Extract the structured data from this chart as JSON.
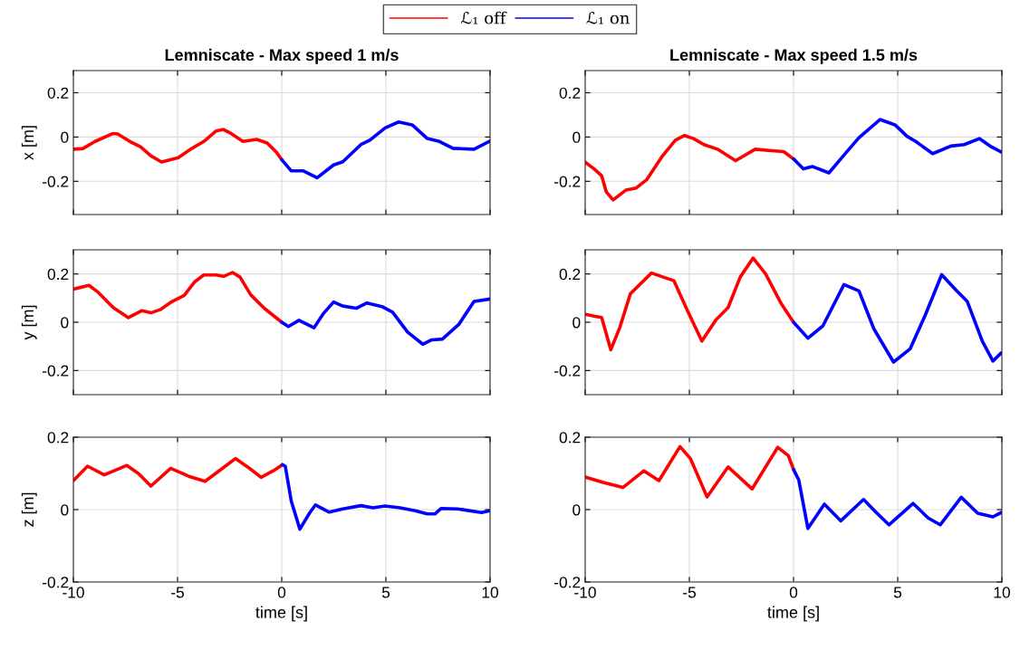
{
  "chart_data": [
    {
      "type": "line",
      "title": "Lemniscate - Max speed 1 m/s",
      "ylabel": "x [m]",
      "xlim": [
        -10,
        10
      ],
      "xticks": [
        -10,
        -5,
        0,
        5,
        10
      ],
      "ylim": [
        -0.35,
        0.3
      ],
      "yticks": [
        -0.2,
        0,
        0.2
      ],
      "grid": true,
      "tick_labels": "y",
      "legend": "top",
      "series": [
        {
          "name": "ℒ₁ off",
          "color": "#ff0000",
          "x": [
            -10,
            -9.54,
            -8.96,
            -8.09,
            -7.87,
            -7.29,
            -6.78,
            -6.28,
            -5.77,
            -4.97,
            -4.32,
            -3.74,
            -3.16,
            -2.8,
            -2.43,
            -1.86,
            -1.2,
            -0.7,
            -0.26,
            0
          ],
          "values": [
            -0.055,
            -0.052,
            -0.02,
            0.016,
            0.014,
            -0.02,
            -0.044,
            -0.085,
            -0.113,
            -0.093,
            -0.052,
            -0.02,
            0.027,
            0.034,
            0.016,
            -0.02,
            -0.011,
            -0.027,
            -0.068,
            -0.102
          ]
        },
        {
          "name": "ℒ₁ on",
          "color": "#0000ff",
          "x": [
            0,
            0.46,
            1.04,
            1.7,
            2.49,
            2.93,
            3.8,
            4.23,
            4.96,
            5.61,
            6.26,
            6.99,
            7.57,
            8.22,
            9.23,
            10
          ],
          "values": [
            -0.102,
            -0.153,
            -0.153,
            -0.184,
            -0.126,
            -0.112,
            -0.034,
            -0.014,
            0.041,
            0.068,
            0.055,
            -0.007,
            -0.02,
            -0.051,
            -0.055,
            -0.018
          ]
        }
      ]
    },
    {
      "type": "line",
      "title": "Lemniscate - Max speed 1.5 m/s",
      "xlim": [
        -10,
        10
      ],
      "xticks": [
        -10,
        -5,
        0,
        5,
        10
      ],
      "ylim": [
        -0.35,
        0.3
      ],
      "yticks": [
        -0.2,
        0,
        0.2
      ],
      "grid": true,
      "tick_labels": "y",
      "series": [
        {
          "color": "#ff0000",
          "x": [
            -10,
            -9.57,
            -9.21,
            -8.99,
            -8.66,
            -8.05,
            -7.55,
            -7.04,
            -6.32,
            -5.67,
            -5.23,
            -4.8,
            -4.3,
            -3.65,
            -2.78,
            -1.84,
            -1.05,
            -0.47,
            0
          ],
          "values": [
            -0.114,
            -0.144,
            -0.175,
            -0.247,
            -0.284,
            -0.24,
            -0.23,
            -0.192,
            -0.089,
            -0.014,
            0.007,
            -0.007,
            -0.034,
            -0.055,
            -0.107,
            -0.055,
            -0.062,
            -0.066,
            -0.099
          ]
        },
        {
          "color": "#0000ff",
          "x": [
            0,
            0.47,
            0.9,
            1.7,
            2.42,
            3.14,
            4.15,
            4.87,
            5.45,
            5.88,
            6.68,
            7.55,
            8.19,
            8.92,
            9.49,
            9.97
          ],
          "values": [
            -0.099,
            -0.144,
            -0.133,
            -0.162,
            -0.082,
            -0.003,
            0.079,
            0.055,
            0.003,
            -0.021,
            -0.075,
            -0.041,
            -0.034,
            -0.007,
            -0.044,
            -0.068
          ]
        }
      ]
    },
    {
      "type": "line",
      "ylabel": "y [m]",
      "xlim": [
        -10,
        10
      ],
      "xticks": [
        -10,
        -5,
        0,
        5,
        10
      ],
      "ylim": [
        -0.3,
        0.3
      ],
      "yticks": [
        -0.2,
        0,
        0.2
      ],
      "grid": true,
      "tick_labels": "y",
      "series": [
        {
          "color": "#ff0000",
          "x": [
            -10,
            -9.25,
            -8.81,
            -8.09,
            -7.36,
            -6.71,
            -6.28,
            -5.84,
            -5.26,
            -4.68,
            -4.17,
            -3.74,
            -3.16,
            -2.8,
            -2.36,
            -2.0,
            -1.49,
            -0.84,
            0
          ],
          "values": [
            0.137,
            0.153,
            0.124,
            0.061,
            0.019,
            0.048,
            0.039,
            0.052,
            0.086,
            0.111,
            0.168,
            0.196,
            0.196,
            0.19,
            0.206,
            0.187,
            0.114,
            0.058,
            0
          ]
        },
        {
          "color": "#0000ff",
          "x": [
            0,
            0.32,
            0.83,
            1.55,
            1.99,
            2.49,
            2.93,
            3.58,
            4.09,
            4.81,
            5.32,
            6.04,
            6.77,
            7.2,
            7.71,
            8.5,
            9.23,
            10
          ],
          "values": [
            0,
            -0.018,
            0.008,
            -0.023,
            0.035,
            0.084,
            0.067,
            0.058,
            0.08,
            0.065,
            0.042,
            -0.041,
            -0.091,
            -0.073,
            -0.07,
            -0.009,
            0.086,
            0.096
          ]
        }
      ]
    },
    {
      "type": "line",
      "xlim": [
        -10,
        10
      ],
      "xticks": [
        -10,
        -5,
        0,
        5,
        10
      ],
      "ylim": [
        -0.3,
        0.3
      ],
      "yticks": [
        -0.2,
        0,
        0.2
      ],
      "grid": true,
      "tick_labels": "y",
      "series": [
        {
          "color": "#ff0000",
          "x": [
            -10,
            -9.57,
            -9.21,
            -8.77,
            -8.34,
            -7.83,
            -6.82,
            -6.25,
            -5.74,
            -5.09,
            -4.4,
            -3.72,
            -3.14,
            -2.56,
            -1.94,
            -1.34,
            -0.61,
            0
          ],
          "values": [
            0.033,
            0.025,
            0.02,
            -0.114,
            -0.022,
            0.118,
            0.204,
            0.187,
            0.172,
            0.048,
            -0.078,
            0.01,
            0.061,
            0.187,
            0.266,
            0.2,
            0.08,
            0
          ]
        },
        {
          "color": "#0000ff",
          "x": [
            0,
            0.69,
            1.41,
            2.42,
            3.14,
            3.86,
            4.8,
            5.6,
            6.32,
            7.11,
            7.83,
            8.34,
            9.06,
            9.57,
            9.97
          ],
          "values": [
            0,
            -0.066,
            -0.015,
            0.156,
            0.13,
            -0.028,
            -0.165,
            -0.11,
            0.029,
            0.197,
            0.13,
            0.086,
            -0.078,
            -0.161,
            -0.127
          ]
        }
      ]
    },
    {
      "type": "line",
      "ylabel": "z [m]",
      "xlabel": "time [s]",
      "xlim": [
        -10,
        10
      ],
      "xticks": [
        -10,
        -5,
        0,
        5,
        10
      ],
      "ylim": [
        -0.2,
        0.2
      ],
      "yticks": [
        -0.2,
        0,
        0.2
      ],
      "grid": true,
      "series": [
        {
          "color": "#ff0000",
          "x": [
            -10,
            -9.32,
            -8.52,
            -7.43,
            -6.86,
            -6.28,
            -5.33,
            -4.46,
            -3.68,
            -3.01,
            -2.22,
            -1.57,
            -0.99,
            -0.41,
            0.03
          ],
          "values": [
            0.08,
            0.12,
            0.096,
            0.122,
            0.099,
            0.065,
            0.114,
            0.092,
            0.078,
            0.107,
            0.141,
            0.115,
            0.089,
            0.107,
            0.124
          ]
        },
        {
          "color": "#0000ff",
          "x": [
            0.03,
            0.17,
            0.46,
            0.87,
            1.33,
            1.62,
            2.28,
            2.93,
            3.8,
            4.38,
            4.96,
            5.68,
            6.41,
            6.99,
            7.35,
            7.64,
            8.43,
            9.59,
            10
          ],
          "values": [
            0.124,
            0.12,
            0.023,
            -0.054,
            -0.01,
            0.013,
            -0.007,
            0.002,
            0.011,
            0.005,
            0.01,
            0.005,
            -0.003,
            -0.012,
            -0.012,
            0.003,
            0.002,
            -0.008,
            -0.003
          ]
        }
      ]
    },
    {
      "type": "line",
      "xlabel": "time [s]",
      "xlim": [
        -10,
        10
      ],
      "xticks": [
        -10,
        -5,
        0,
        5,
        10
      ],
      "ylim": [
        -0.2,
        0.2
      ],
      "yticks": [
        -0.2,
        0,
        0.2
      ],
      "grid": true,
      "series": [
        {
          "color": "#ff0000",
          "x": [
            -10,
            -9.13,
            -8.19,
            -7.18,
            -6.46,
            -5.45,
            -4.95,
            -4.15,
            -3.14,
            -1.99,
            -0.76,
            -0.25,
            0
          ],
          "values": [
            0.09,
            0.075,
            0.061,
            0.107,
            0.08,
            0.174,
            0.141,
            0.035,
            0.118,
            0.057,
            0.172,
            0.149,
            0.111
          ]
        },
        {
          "color": "#0000ff",
          "x": [
            0,
            0.25,
            0.69,
            1.48,
            2.27,
            3.36,
            3.94,
            4.58,
            5.74,
            6.46,
            7.04,
            8.05,
            8.84,
            9.57,
            9.97
          ],
          "values": [
            0.111,
            0.082,
            -0.052,
            0.015,
            -0.031,
            0.028,
            -0.006,
            -0.042,
            0.017,
            -0.023,
            -0.042,
            0.034,
            -0.01,
            -0.02,
            -0.008
          ]
        }
      ]
    }
  ]
}
